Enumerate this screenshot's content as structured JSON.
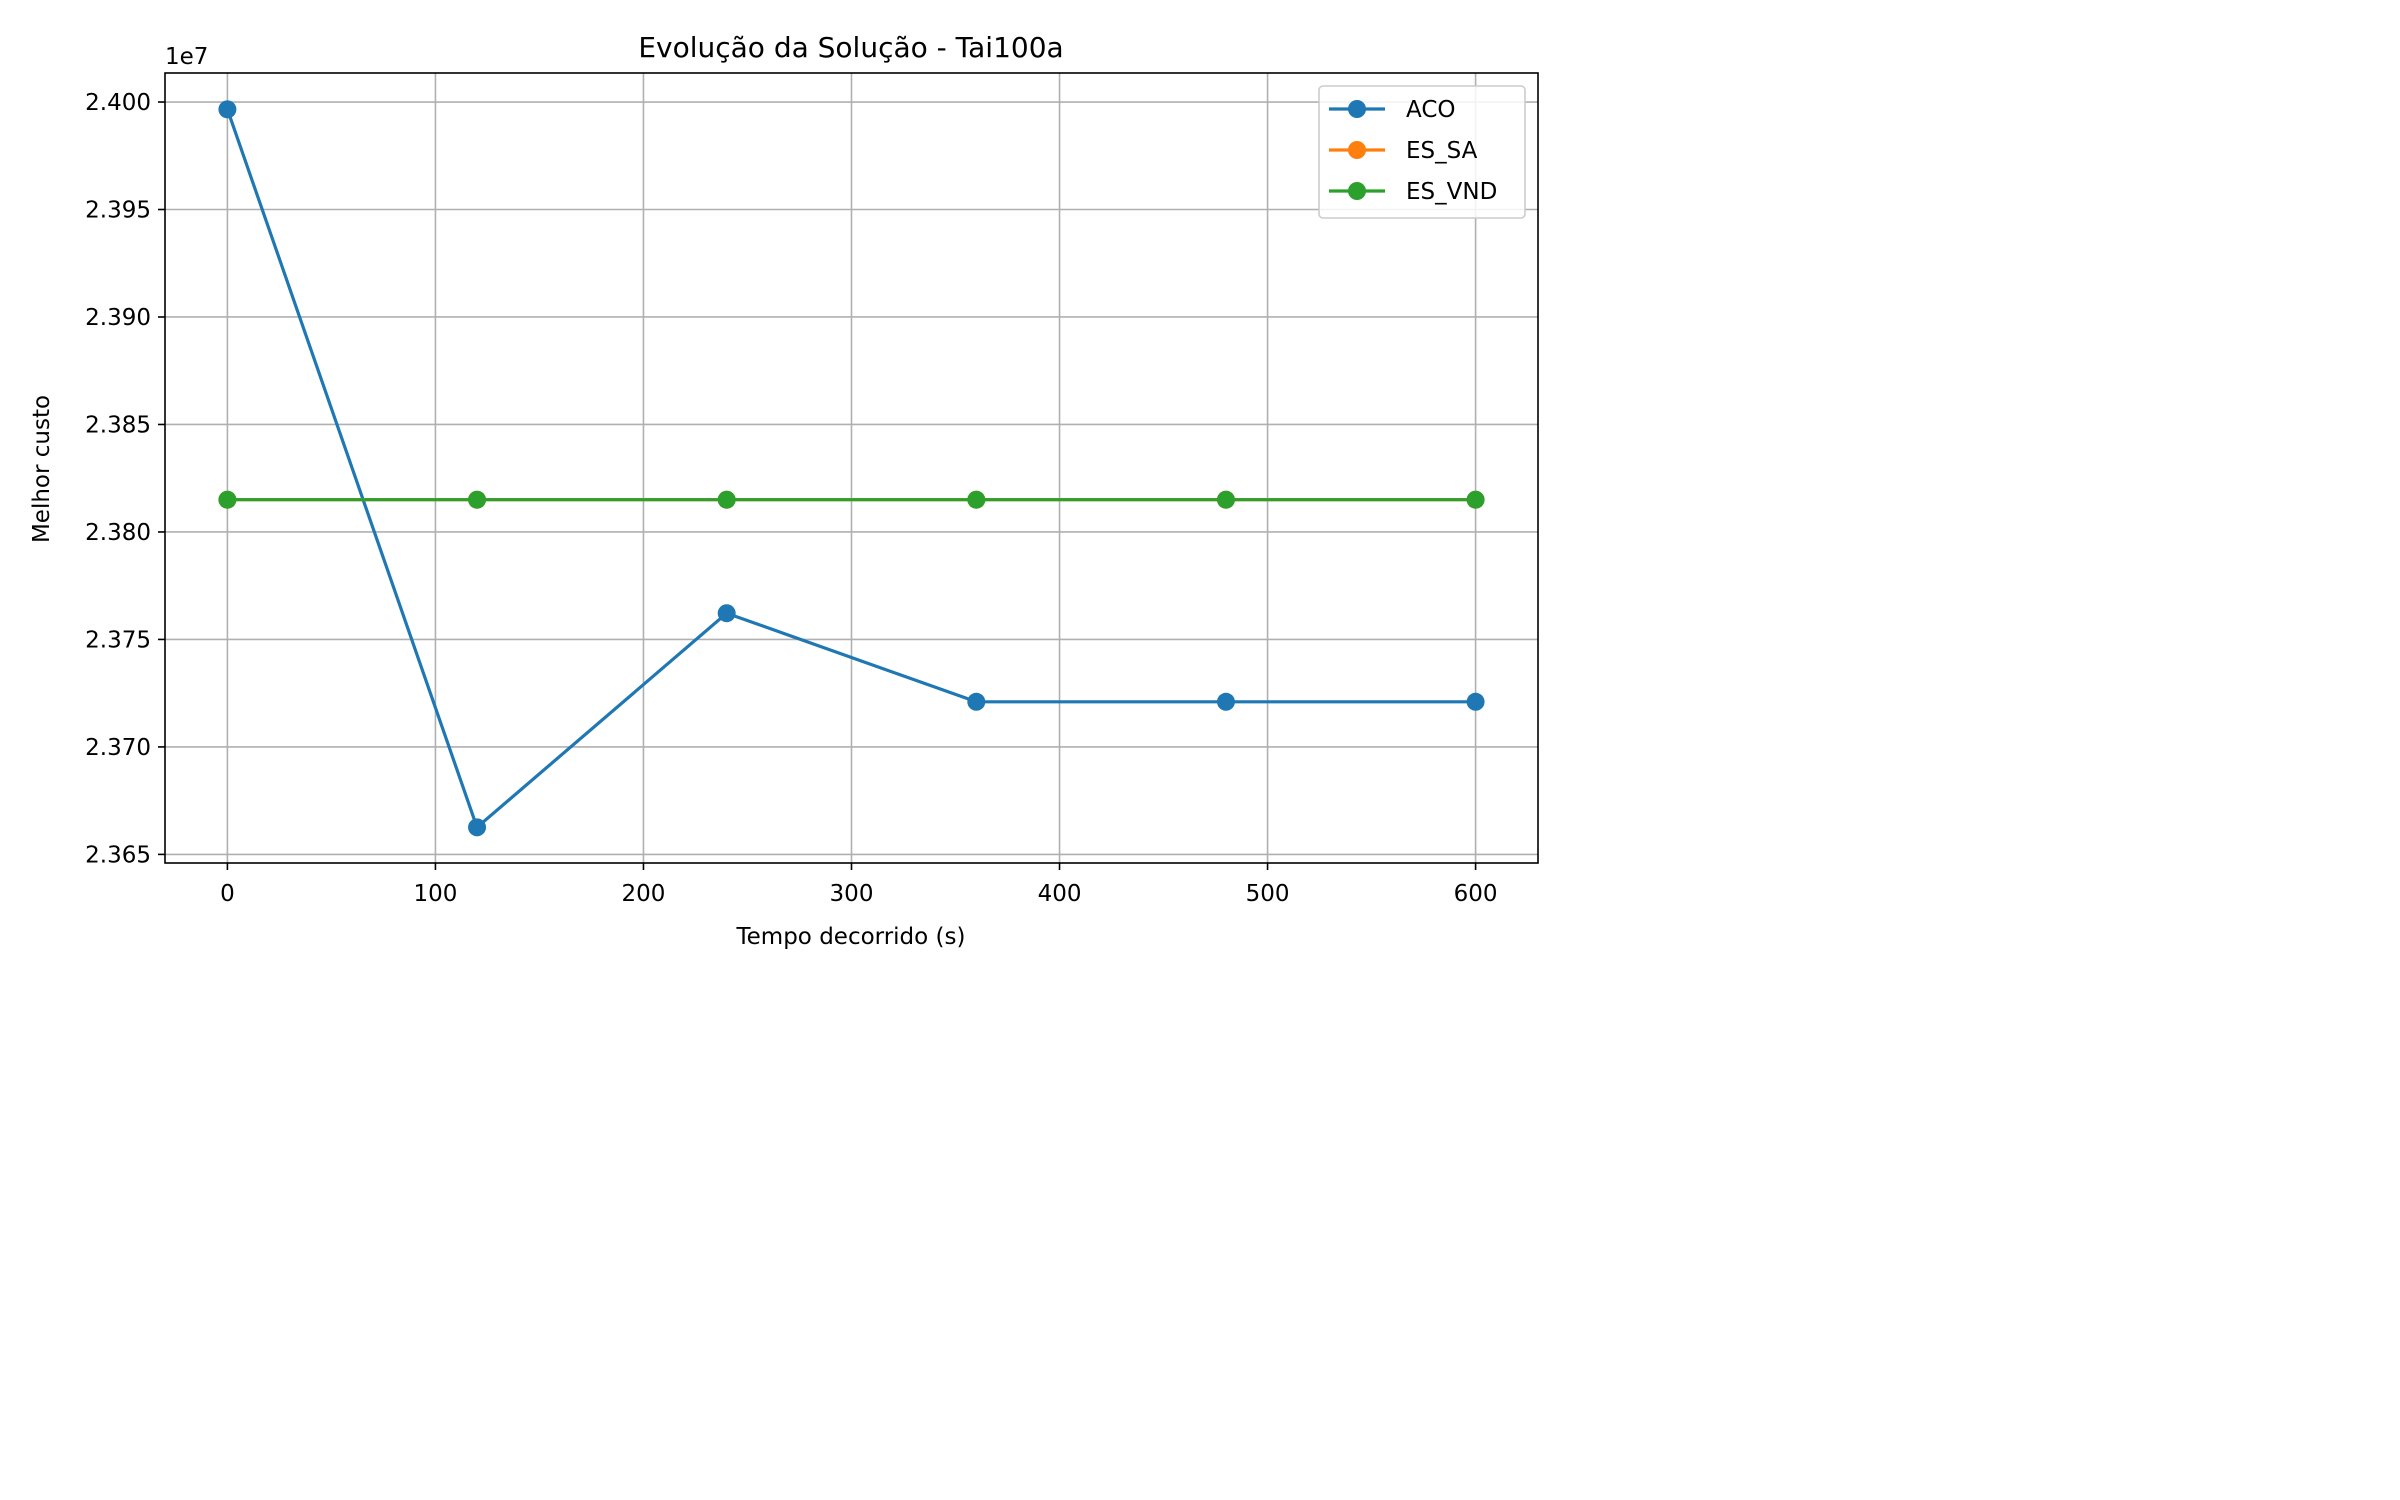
{
  "chart_data": {
    "type": "line",
    "title": "Evolução da Solução - Tai100a",
    "xlabel": "Tempo decorrido (s)",
    "ylabel": "Melhor custo",
    "offset_label": "1e7",
    "xlim": [
      -30,
      630
    ],
    "ylim": [
      2.3646,
      2.40135
    ],
    "x_ticks": [
      0,
      100,
      200,
      300,
      400,
      500,
      600
    ],
    "x_tick_labels": [
      "0",
      "100",
      "200",
      "300",
      "400",
      "500",
      "600"
    ],
    "y_ticks": [
      2.365,
      2.37,
      2.375,
      2.38,
      2.385,
      2.39,
      2.395,
      2.4
    ],
    "y_tick_labels": [
      "2.365",
      "2.370",
      "2.375",
      "2.380",
      "2.385",
      "2.390",
      "2.395",
      "2.400"
    ],
    "grid": true,
    "legend_position": "top-right",
    "x": [
      0,
      120,
      240,
      360,
      480,
      600
    ],
    "series": [
      {
        "name": "ACO",
        "color": "#1f77b4",
        "values": [
          2.39966,
          2.36626,
          2.37622,
          2.3721,
          2.3721,
          2.3721
        ]
      },
      {
        "name": "ES_SA",
        "color": "#ff7f0e",
        "values": [
          2.3815,
          2.3815,
          2.3815,
          2.3815,
          2.3815,
          2.3815
        ]
      },
      {
        "name": "ES_VND",
        "color": "#2ca02c",
        "values": [
          2.3815,
          2.3815,
          2.3815,
          2.3815,
          2.3815,
          2.3815
        ]
      }
    ]
  }
}
